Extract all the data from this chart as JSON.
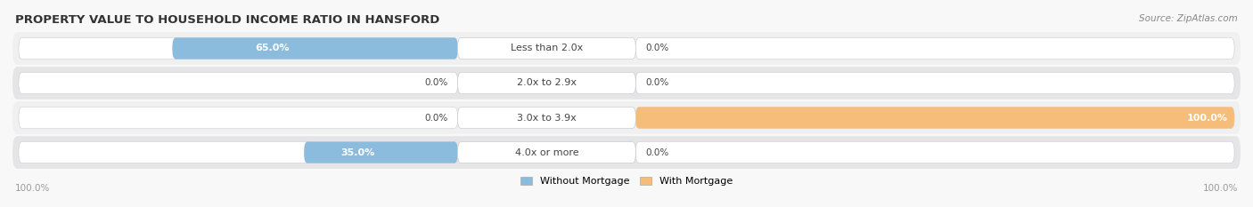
{
  "title": "PROPERTY VALUE TO HOUSEHOLD INCOME RATIO IN HANSFORD",
  "source": "Source: ZipAtlas.com",
  "categories": [
    "Less than 2.0x",
    "2.0x to 2.9x",
    "3.0x to 3.9x",
    "4.0x or more"
  ],
  "without_mortgage": [
    65.0,
    0.0,
    0.0,
    35.0
  ],
  "with_mortgage": [
    0.0,
    0.0,
    100.0,
    0.0
  ],
  "color_without": "#8BBCDE",
  "color_with": "#F5BC7A",
  "row_bg_even": "#F0F0F0",
  "row_bg_odd": "#E5E5E8",
  "title_color": "#333333",
  "source_color": "#888888",
  "label_color": "#444444",
  "axis_label_color": "#999999",
  "figsize": [
    14.06,
    2.33
  ],
  "dpi": 100,
  "x_left_label": "100.0%",
  "x_right_label": "100.0%"
}
